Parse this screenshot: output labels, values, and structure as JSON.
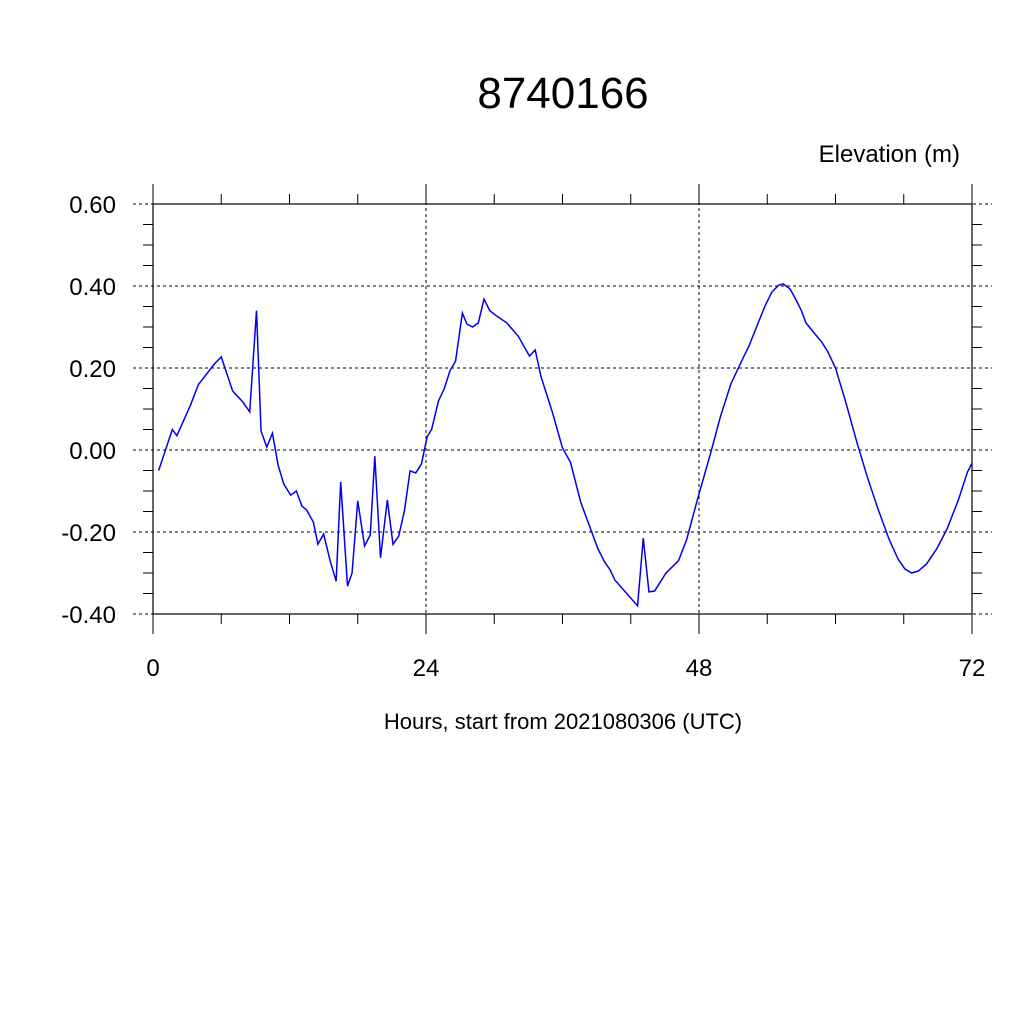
{
  "chart_data": {
    "type": "line",
    "title": "8740166",
    "subtitle": "Elevation (m)",
    "xlabel": "Hours, start from 2021080306 (UTC)",
    "xlim": [
      0,
      72
    ],
    "ylim": [
      -0.4,
      0.6
    ],
    "xticks": [
      0,
      24,
      48,
      72
    ],
    "yticks": [
      {
        "value": -0.4,
        "label": "-0.40"
      },
      {
        "value": -0.2,
        "label": "-0.20"
      },
      {
        "value": 0,
        "label": "0.00"
      },
      {
        "value": 0.2,
        "label": "0.20"
      },
      {
        "value": 0.4,
        "label": "0.40"
      },
      {
        "value": 0.6,
        "label": "0.60"
      }
    ],
    "grid": true,
    "series": [
      {
        "color": "#0000ee",
        "x": [
          0.5,
          1.7,
          2.1,
          2.5,
          3.3,
          4.0,
          4.7,
          5.4,
          6.0,
          7.0,
          7.9,
          8.5,
          9.1,
          9.5,
          10.0,
          10.5,
          11.0,
          11.5,
          12.1,
          12.6,
          13.1,
          13.5,
          14.1,
          14.5,
          15.0,
          15.6,
          16.1,
          16.5,
          17.1,
          17.5,
          18.0,
          18.6,
          19.1,
          19.5,
          20.0,
          20.6,
          21.1,
          21.6,
          22.1,
          22.6,
          23.1,
          23.6,
          24.1,
          24.5,
          25.1,
          25.6,
          26.1,
          26.6,
          27.2,
          27.6,
          28.1,
          28.6,
          29.1,
          29.6,
          30.2,
          31.1,
          32.1,
          33.1,
          33.6,
          34.1,
          35.1,
          36.0,
          36.7,
          37.6,
          38.3,
          39.1,
          39.7,
          40.2,
          40.6,
          41.9,
          42.6,
          43.1,
          43.6,
          44.1,
          45.1,
          46.2,
          46.9,
          47.9,
          49.0,
          49.9,
          50.8,
          51.8,
          52.4,
          53.2,
          53.8,
          54.4,
          55.0,
          55.4,
          56.0,
          56.5,
          57.0,
          57.4,
          58.2,
          58.8,
          59.3,
          60.0,
          60.9,
          61.9,
          62.8,
          63.7,
          64.7,
          65.5,
          66.1,
          66.7,
          67.3,
          68.0,
          68.9,
          69.8,
          70.8,
          71.6,
          72.0
        ],
        "values": [
          -0.05,
          0.05,
          0.035,
          0.06,
          0.11,
          0.16,
          0.185,
          0.21,
          0.227,
          0.144,
          0.117,
          0.093,
          0.34,
          0.046,
          0.007,
          0.041,
          -0.037,
          -0.083,
          -0.11,
          -0.1,
          -0.137,
          -0.146,
          -0.176,
          -0.23,
          -0.205,
          -0.273,
          -0.32,
          -0.078,
          -0.332,
          -0.3,
          -0.124,
          -0.234,
          -0.207,
          -0.015,
          -0.263,
          -0.122,
          -0.23,
          -0.21,
          -0.149,
          -0.051,
          -0.056,
          -0.034,
          0.032,
          0.051,
          0.12,
          0.149,
          0.193,
          0.217,
          0.334,
          0.307,
          0.3,
          0.31,
          0.368,
          0.34,
          0.327,
          0.31,
          0.278,
          0.229,
          0.244,
          0.18,
          0.093,
          0.005,
          -0.03,
          -0.127,
          -0.18,
          -0.24,
          -0.273,
          -0.293,
          -0.317,
          -0.358,
          -0.38,
          -0.215,
          -0.346,
          -0.344,
          -0.3,
          -0.27,
          -0.22,
          -0.117,
          -0.01,
          0.083,
          0.161,
          0.22,
          0.254,
          0.31,
          0.351,
          0.385,
          0.402,
          0.405,
          0.393,
          0.368,
          0.34,
          0.31,
          0.283,
          0.263,
          0.241,
          0.2,
          0.117,
          0.017,
          -0.066,
          -0.141,
          -0.217,
          -0.266,
          -0.29,
          -0.3,
          -0.295,
          -0.278,
          -0.241,
          -0.193,
          -0.122,
          -0.054,
          -0.032
        ]
      }
    ]
  }
}
